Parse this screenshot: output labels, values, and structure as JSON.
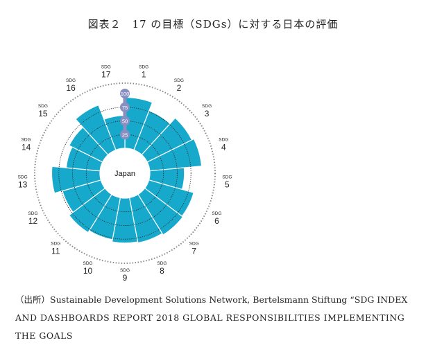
{
  "figure": {
    "title": "図表２　17 の目標（SDGs）に対する日本の評価"
  },
  "chart_data": {
    "type": "polar-bar",
    "center_label": "Japan",
    "goal_prefix": "SDG",
    "radial_ticks": [
      "25",
      "50",
      "75",
      "100"
    ],
    "rlim": [
      0,
      100
    ],
    "colors": {
      "bar": "#17a9cc",
      "grid": "#2a2a2a",
      "tick_badge": "#8a8fc2",
      "outer_ring": "#888888"
    },
    "goals": [
      {
        "goal": "1",
        "value": 93
      },
      {
        "goal": "2",
        "value": 77
      },
      {
        "goal": "3",
        "value": 91
      },
      {
        "goal": "4",
        "value": 95
      },
      {
        "goal": "5",
        "value": 63
      },
      {
        "goal": "6",
        "value": 85
      },
      {
        "goal": "7",
        "value": 87
      },
      {
        "goal": "8",
        "value": 84
      },
      {
        "goal": "9",
        "value": 82
      },
      {
        "goal": "10",
        "value": 78
      },
      {
        "goal": "11",
        "value": 82
      },
      {
        "goal": "12",
        "value": 73
      },
      {
        "goal": "13",
        "value": 88
      },
      {
        "goal": "14",
        "value": 62
      },
      {
        "goal": "15",
        "value": 68
      },
      {
        "goal": "16",
        "value": 88
      },
      {
        "goal": "17",
        "value": 60
      }
    ]
  },
  "source": {
    "line1": "（出所）Sustainable Development Solutions Network, Bertelsmann Stiftung “SDG INDEX",
    "line2": "AND DASHBOARDS REPORT 2018 GLOBAL RESPONSIBILITIES IMPLEMENTING",
    "line3": "THE GOALS"
  }
}
